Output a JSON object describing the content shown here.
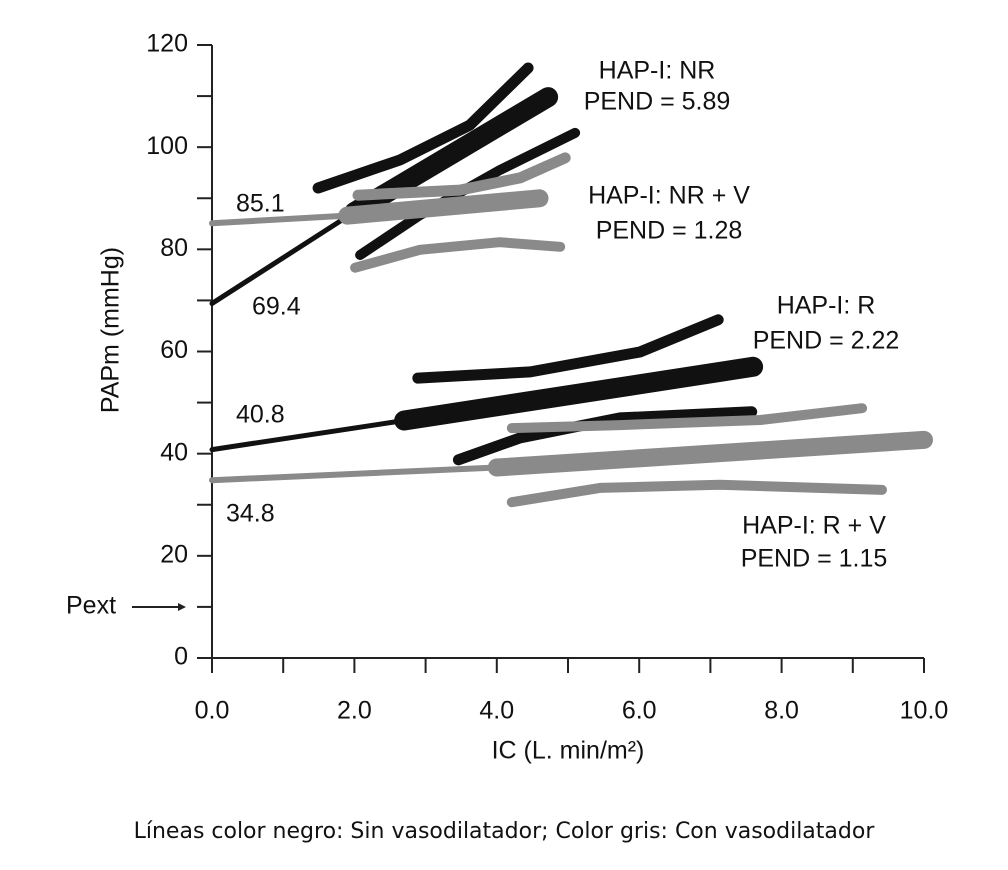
{
  "chart_data": {
    "type": "line",
    "xlabel": "IC (L. min/m²)",
    "ylabel": "PAPm (mmHg)",
    "caption": "Líneas color negro: Sin vasodilatador; Color gris: Con vasodilatador",
    "xlim": [
      0,
      10
    ],
    "ylim": [
      0,
      120
    ],
    "xticks": [
      {
        "value": 0,
        "label": "0.0"
      },
      {
        "value": 2,
        "label": "2.0"
      },
      {
        "value": 4,
        "label": "4.0"
      },
      {
        "value": 6,
        "label": "6.0"
      },
      {
        "value": 8,
        "label": "8.0"
      },
      {
        "value": 10,
        "label": "10.0"
      }
    ],
    "xminor_ticks": [
      1,
      3,
      5,
      7,
      9
    ],
    "yticks": [
      0,
      20,
      40,
      60,
      80,
      100,
      120
    ],
    "yminor_ticks": [
      10,
      30,
      50,
      70,
      90,
      110
    ],
    "annotations": [
      "HAP-I: NR",
      "PEND = 5.89",
      "HAP-I: NR + V",
      "PEND = 1.28",
      "HAP-I: R",
      "PEND = 2.22",
      "HAP-I: R + V",
      "PEND = 1.15",
      "85.1",
      "69.4",
      "40.8",
      "34.8",
      "Pext"
    ],
    "series": [
      {
        "color": "#111111",
        "width": 11,
        "x": [
          1.49,
          2.64,
          3.62,
          4.44
        ],
        "values": [
          92.0,
          97.5,
          104.3,
          115.5
        ]
      },
      {
        "color": "#111111",
        "width": 5,
        "x": [
          0,
          2.0
        ],
        "values": [
          69.4,
          87.3
        ]
      },
      {
        "color": "#111111",
        "width": 20,
        "x": [
          2.0,
          4.72
        ],
        "values": [
          87.3,
          109.8
        ]
      },
      {
        "color": "#111111",
        "width": 10,
        "x": [
          2.08,
          2.92,
          4.04,
          5.1
        ],
        "values": [
          78.9,
          86.7,
          95.5,
          102.8
        ]
      },
      {
        "color": "#8a8a8a",
        "width": 11,
        "x": [
          2.05,
          3.48,
          4.33,
          4.96
        ],
        "values": [
          90.6,
          91.6,
          94.0,
          97.9
        ]
      },
      {
        "color": "#8a8a8a",
        "width": 6,
        "x": [
          0,
          1.9
        ],
        "values": [
          85.1,
          86.6
        ]
      },
      {
        "color": "#8a8a8a",
        "width": 18,
        "x": [
          1.9,
          4.6
        ],
        "values": [
          86.6,
          90.0
        ]
      },
      {
        "color": "#8a8a8a",
        "width": 10,
        "x": [
          2.01,
          2.92,
          4.04,
          4.89
        ],
        "values": [
          76.4,
          79.9,
          81.4,
          80.5
        ]
      },
      {
        "color": "#111111",
        "width": 11,
        "x": [
          2.89,
          4.47,
          6.01,
          7.11
        ],
        "values": [
          54.8,
          56.0,
          59.9,
          66.2
        ]
      },
      {
        "color": "#111111",
        "width": 5,
        "x": [
          0,
          2.7
        ],
        "values": [
          40.8,
          46.5
        ]
      },
      {
        "color": "#111111",
        "width": 20,
        "x": [
          2.7,
          7.6
        ],
        "values": [
          46.5,
          57.0
        ]
      },
      {
        "color": "#111111",
        "width": 11,
        "x": [
          3.46,
          4.33,
          5.73,
          7.58
        ],
        "values": [
          38.8,
          43.1,
          47.0,
          48.2
        ]
      },
      {
        "color": "#8a8a8a",
        "width": 10,
        "x": [
          4.21,
          5.73,
          7.7,
          9.13
        ],
        "values": [
          45.0,
          45.6,
          46.6,
          48.9
        ]
      },
      {
        "color": "#8a8a8a",
        "width": 6,
        "x": [
          0,
          4.0
        ],
        "values": [
          34.8,
          37.3
        ]
      },
      {
        "color": "#8a8a8a",
        "width": 18,
        "x": [
          4.0,
          10.0
        ],
        "values": [
          37.3,
          42.7
        ]
      },
      {
        "color": "#8a8a8a",
        "width": 10,
        "x": [
          4.21,
          5.45,
          7.13,
          9.41
        ],
        "values": [
          30.5,
          33.3,
          33.9,
          32.9
        ]
      }
    ]
  }
}
